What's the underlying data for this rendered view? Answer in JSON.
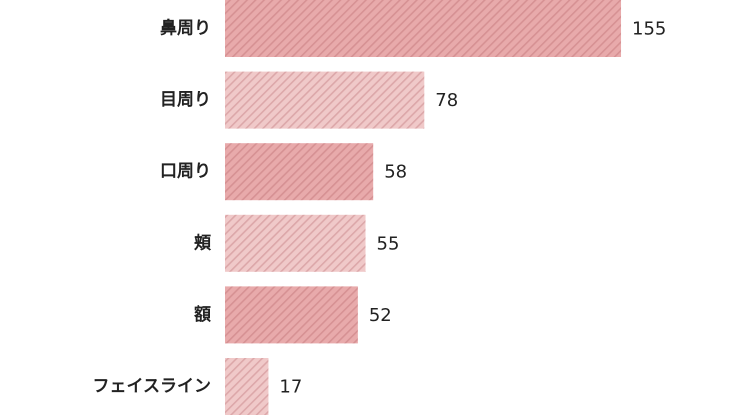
{
  "chart_data": {
    "type": "bar",
    "orientation": "horizontal",
    "categories": [
      "鼻周り",
      "目周り",
      "口周り",
      "頬",
      "額",
      "フェイスライン"
    ],
    "values": [
      155,
      78,
      58,
      55,
      52,
      17
    ],
    "colors": [
      "#e8aaab",
      "#f0c9c9",
      "#e8aaab",
      "#f0c9c9",
      "#e8aaab",
      "#f0c9c9"
    ]
  }
}
